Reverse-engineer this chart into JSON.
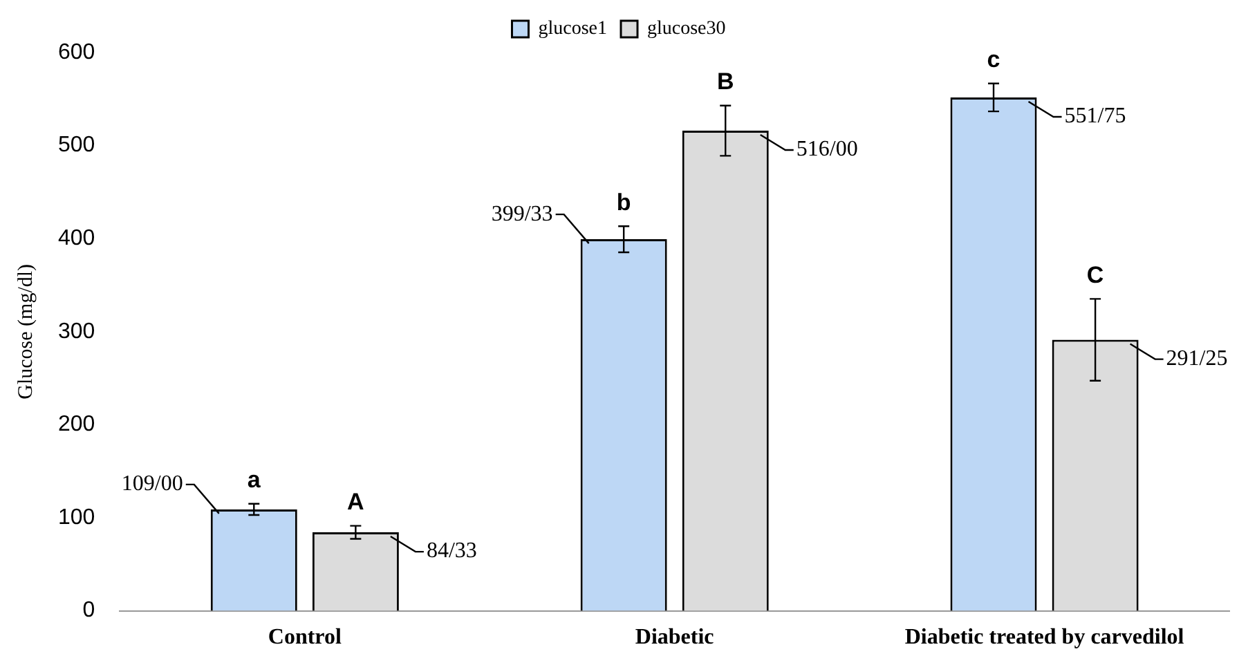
{
  "chart_data": {
    "type": "bar",
    "ylabel": "Glucose (mg/dl)",
    "categories": [
      "Control",
      "Diabetic",
      "Diabetic treated by carvedilol"
    ],
    "series": [
      {
        "name": "glucose1",
        "color": "#bdd7f5",
        "values": [
          109.0,
          399.33,
          551.75
        ],
        "errors": [
          6,
          14,
          15
        ],
        "value_labels": [
          "109/00",
          "399/33",
          "551/75"
        ]
      },
      {
        "name": "glucose30",
        "color": "#dcdcdc",
        "values": [
          84.33,
          516.0,
          291.25
        ],
        "errors": [
          7,
          27,
          44
        ],
        "value_labels": [
          "84/33",
          "516/00",
          "291/25"
        ]
      }
    ],
    "annotations": [
      "a",
      "A",
      "b",
      "B",
      "c",
      "C"
    ],
    "ylim": [
      0,
      600
    ],
    "yticks": [
      0,
      100,
      200,
      300,
      400,
      500,
      600
    ],
    "grid": false,
    "legend": "top"
  }
}
